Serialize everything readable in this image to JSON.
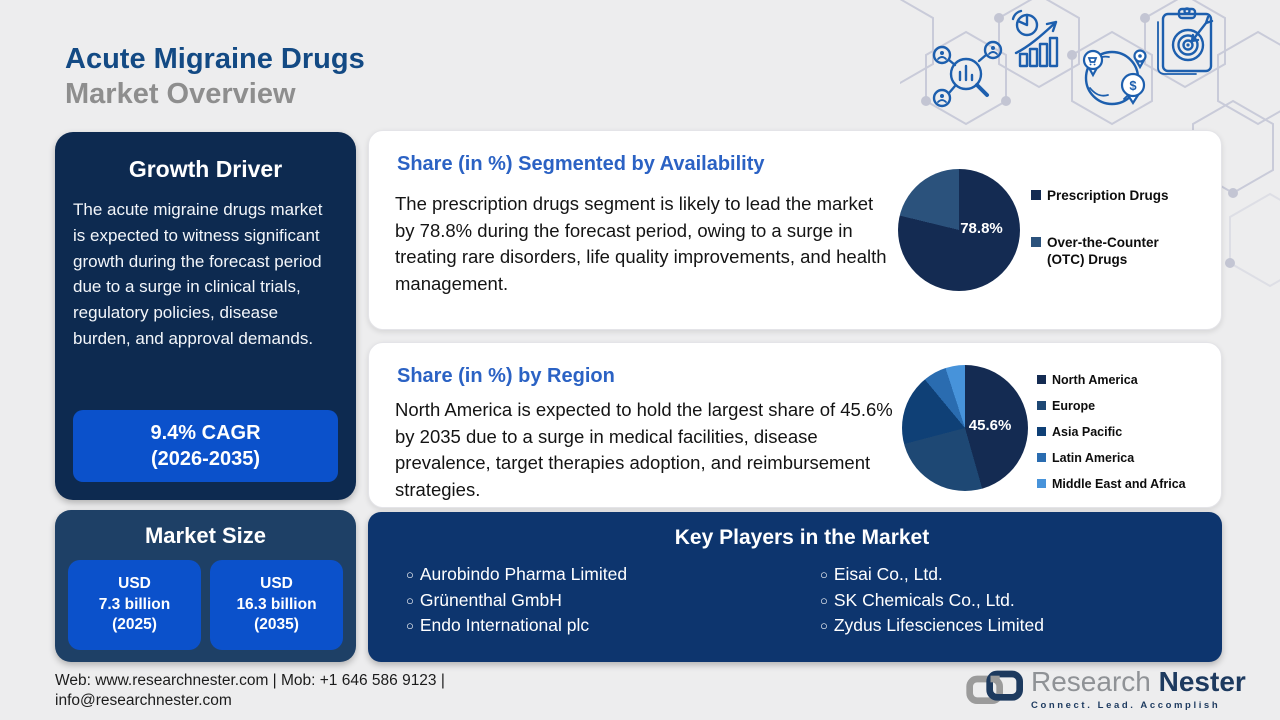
{
  "header": {
    "title_line1": "Acute Migraine Drugs",
    "title_line2": "Market Overview"
  },
  "icons": {
    "decor": [
      "network-research-icon",
      "growth-chart-icon",
      "global-market-icon",
      "target-plan-icon"
    ]
  },
  "growth_driver": {
    "title": "Growth Driver",
    "body": "The acute migraine drugs market is expected to witness significant growth during the forecast period due to a surge in clinical trials, regulatory policies, disease burden, and approval demands.",
    "cagr_line1": "9.4% CAGR",
    "cagr_line2": "(2026-2035)"
  },
  "market_size": {
    "title": "Market Size",
    "items": [
      {
        "l1": "USD",
        "l2": "7.3 billion",
        "l3": "(2025)"
      },
      {
        "l1": "USD",
        "l2": "16.3 billion",
        "l3": "(2035)"
      }
    ]
  },
  "availability_card": {
    "title": "Share (in %) Segmented by Availability",
    "body": "The prescription drugs segment is likely to lead the market by 78.8% during the forecast period, owing to a surge in treating rare disorders, life quality improvements, and health management."
  },
  "region_card": {
    "title": "Share (in %) by Region",
    "body": "North America is expected to hold the largest share of 45.6% by 2035 due to a surge in medical facilities, disease prevalence, target therapies adoption, and reimbursement strategies."
  },
  "key_players": {
    "title": "Key Players in the Market",
    "bullet": "○",
    "col1": [
      "Aurobindo Pharma Limited",
      "Grünenthal GmbH",
      "Endo International plc"
    ],
    "col2": [
      "Eisai Co., Ltd.",
      "SK Chemicals Co., Ltd.",
      "Zydus Lifesciences Limited"
    ]
  },
  "footer": {
    "line1": "Web: www.researchnester.com | Mob: +1 646 586 9123 |",
    "line2": "info@researchnester.com",
    "logo_part1": "Research",
    "logo_part2": " Nester",
    "tagline": "Connect. Lead. Accomplish"
  },
  "colors": {
    "accent_blue": "#0b51cb",
    "heading_blue": "#2b62c4",
    "navy_dark": "#0d2a50",
    "navy_mid": "#1e4066",
    "navy_players": "#0d356e"
  },
  "chart_data": [
    {
      "type": "pie",
      "title": "Share (in %) Segmented by Availability",
      "labels": [
        "Prescription Drugs",
        "Over-the-Counter (OTC) Drugs"
      ],
      "values": [
        78.8,
        21.2
      ],
      "colors": [
        "#142b52",
        "#2b527c"
      ],
      "annotation": "78.8%",
      "start_angle": "top, clockwise",
      "legend_position": "right"
    },
    {
      "type": "pie",
      "title": "Share (in %) by Region",
      "labels": [
        "North America",
        "Europe",
        "Asia Pacific",
        "Latin America",
        "Middle East and Africa"
      ],
      "values": [
        45.6,
        25.3,
        18.1,
        6.0,
        5.0
      ],
      "colors": [
        "#142b52",
        "#1e4874",
        "#0f4076",
        "#2a6cb0",
        "#4793da"
      ],
      "annotation": "45.6%",
      "start_angle": "top, clockwise",
      "legend_position": "right"
    }
  ]
}
